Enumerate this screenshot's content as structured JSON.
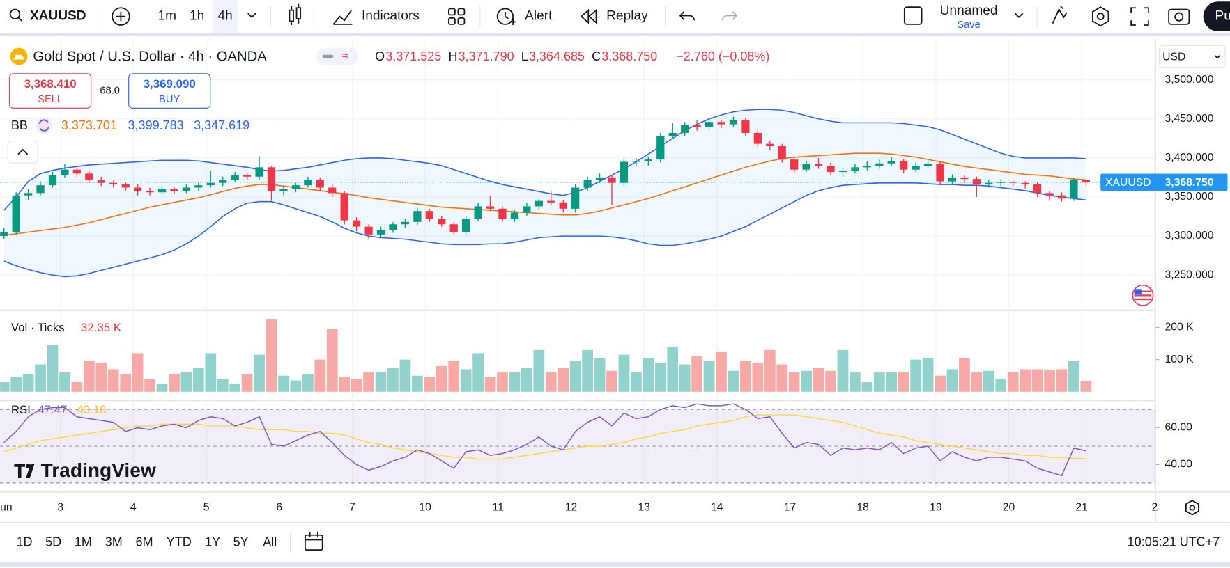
{
  "toolbar": {
    "symbol": "XAUUSD",
    "intervals": [
      "1m",
      "1h",
      "4h"
    ],
    "indicators": "Indicators",
    "alert": "Alert",
    "replay": "Replay",
    "layout_name": "Unnamed",
    "save": "Save",
    "publish": "Pu"
  },
  "legend": {
    "title": "Gold Spot / U.S. Dollar · 4h · OANDA",
    "ohlc": [
      {
        "key": "O",
        "value": "3,371.525"
      },
      {
        "key": "H",
        "value": "3,371.790"
      },
      {
        "key": "L",
        "value": "3,364.685"
      },
      {
        "key": "C",
        "value": "3,368.750"
      }
    ],
    "change": "−2.760 (−0.08%)",
    "sell": {
      "price": "3,368.410",
      "label": "SELL"
    },
    "spread": "68.0",
    "buy": {
      "price": "3,369.090",
      "label": "BUY"
    },
    "bb": {
      "label": "BB",
      "values": [
        "3,373.701",
        "3,399.783",
        "3,347.619"
      ]
    },
    "volume": {
      "label": "Vol · Ticks",
      "value": "32.35 K"
    },
    "rsi": {
      "label": "RSI",
      "values": [
        "47.47",
        "43.18"
      ]
    }
  },
  "currency": "USD",
  "price_tag": {
    "symbol": "XAUUSD",
    "price": "3,368.750"
  },
  "watermark": "TradingView",
  "time_axis": {
    "labels": [
      "un",
      "3",
      "4",
      "5",
      "6",
      "7",
      "10",
      "11",
      "12",
      "13",
      "14",
      "17",
      "18",
      "19",
      "20",
      "21",
      "2"
    ]
  },
  "ranges": [
    "1D",
    "5D",
    "1M",
    "3M",
    "6M",
    "YTD",
    "1Y",
    "5Y",
    "All"
  ],
  "clock": "10:05:21 UTC+7",
  "chart_data": [
    {
      "type": "candlestick",
      "up_color": "#089981",
      "down_color": "#f23645",
      "grid": true,
      "ylim": [
        3206,
        3552
      ],
      "yticks": [
        {
          "value": 3250,
          "label": "3,250.000"
        },
        {
          "value": 3300,
          "label": "3,300.000"
        },
        {
          "value": 3350,
          "label": "3,350.000"
        },
        {
          "value": 3400,
          "label": "3,400.000"
        },
        {
          "value": 3450,
          "label": "3,450.000"
        },
        {
          "value": 3500,
          "label": "3,500.000"
        }
      ],
      "candles": [
        [
          3300,
          3310,
          3296,
          3305
        ],
        [
          3305,
          3356,
          3302,
          3352
        ],
        [
          3352,
          3360,
          3346,
          3355
        ],
        [
          3355,
          3370,
          3352,
          3365
        ],
        [
          3365,
          3382,
          3362,
          3378
        ],
        [
          3378,
          3392,
          3374,
          3385
        ],
        [
          3385,
          3388,
          3376,
          3380
        ],
        [
          3380,
          3383,
          3368,
          3372
        ],
        [
          3372,
          3376,
          3364,
          3368
        ],
        [
          3368,
          3371,
          3362,
          3366
        ],
        [
          3366,
          3369,
          3358,
          3362
        ],
        [
          3362,
          3366,
          3352,
          3358
        ],
        [
          3358,
          3362,
          3352,
          3356
        ],
        [
          3356,
          3364,
          3353,
          3360
        ],
        [
          3360,
          3363,
          3354,
          3358
        ],
        [
          3358,
          3366,
          3355,
          3362
        ],
        [
          3362,
          3368,
          3358,
          3365
        ],
        [
          3365,
          3383,
          3362,
          3368
        ],
        [
          3368,
          3376,
          3364,
          3372
        ],
        [
          3372,
          3382,
          3369,
          3378
        ],
        [
          3378,
          3381,
          3372,
          3376
        ],
        [
          3376,
          3402,
          3372,
          3388
        ],
        [
          3388,
          3390,
          3345,
          3358
        ],
        [
          3358,
          3364,
          3352,
          3360
        ],
        [
          3360,
          3368,
          3356,
          3365
        ],
        [
          3365,
          3376,
          3362,
          3372
        ],
        [
          3372,
          3375,
          3358,
          3362
        ],
        [
          3362,
          3366,
          3350,
          3355
        ],
        [
          3355,
          3358,
          3315,
          3320
        ],
        [
          3320,
          3324,
          3306,
          3312
        ],
        [
          3312,
          3315,
          3296,
          3302
        ],
        [
          3302,
          3312,
          3298,
          3308
        ],
        [
          3308,
          3318,
          3304,
          3315
        ],
        [
          3315,
          3322,
          3310,
          3318
        ],
        [
          3318,
          3336,
          3314,
          3332
        ],
        [
          3332,
          3335,
          3318,
          3322
        ],
        [
          3322,
          3326,
          3312,
          3315
        ],
        [
          3315,
          3318,
          3301,
          3305
        ],
        [
          3305,
          3326,
          3302,
          3322
        ],
        [
          3322,
          3342,
          3319,
          3338
        ],
        [
          3338,
          3352,
          3332,
          3335
        ],
        [
          3335,
          3338,
          3318,
          3322
        ],
        [
          3322,
          3333,
          3318,
          3330
        ],
        [
          3330,
          3342,
          3326,
          3338
        ],
        [
          3338,
          3349,
          3334,
          3345
        ],
        [
          3345,
          3358,
          3340,
          3343
        ],
        [
          3343,
          3346,
          3330,
          3335
        ],
        [
          3335,
          3366,
          3330,
          3362
        ],
        [
          3362,
          3376,
          3358,
          3372
        ],
        [
          3372,
          3380,
          3368,
          3375
        ],
        [
          3375,
          3378,
          3340,
          3368
        ],
        [
          3368,
          3400,
          3364,
          3395
        ],
        [
          3395,
          3400,
          3390,
          3396
        ],
        [
          3396,
          3402,
          3390,
          3398
        ],
        [
          3398,
          3432,
          3394,
          3428
        ],
        [
          3428,
          3445,
          3424,
          3432
        ],
        [
          3432,
          3446,
          3428,
          3442
        ],
        [
          3442,
          3448,
          3435,
          3440
        ],
        [
          3440,
          3450,
          3436,
          3446
        ],
        [
          3446,
          3449,
          3438,
          3443
        ],
        [
          3443,
          3453,
          3440,
          3448
        ],
        [
          3448,
          3451,
          3428,
          3432
        ],
        [
          3432,
          3436,
          3414,
          3418
        ],
        [
          3418,
          3422,
          3410,
          3415
        ],
        [
          3415,
          3418,
          3394,
          3398
        ],
        [
          3398,
          3402,
          3380,
          3385
        ],
        [
          3385,
          3396,
          3382,
          3392
        ],
        [
          3392,
          3400,
          3386,
          3390
        ],
        [
          3390,
          3394,
          3378,
          3382
        ],
        [
          3382,
          3388,
          3376,
          3383
        ],
        [
          3383,
          3392,
          3380,
          3388
        ],
        [
          3388,
          3396,
          3384,
          3390
        ],
        [
          3390,
          3398,
          3386,
          3393
        ],
        [
          3393,
          3401,
          3389,
          3396
        ],
        [
          3396,
          3399,
          3381,
          3385
        ],
        [
          3385,
          3394,
          3382,
          3390
        ],
        [
          3390,
          3397,
          3386,
          3392
        ],
        [
          3392,
          3395,
          3365,
          3370
        ],
        [
          3370,
          3379,
          3366,
          3375
        ],
        [
          3375,
          3378,
          3368,
          3373
        ],
        [
          3373,
          3376,
          3350,
          3366
        ],
        [
          3366,
          3372,
          3362,
          3368
        ],
        [
          3368,
          3373,
          3364,
          3369
        ],
        [
          3369,
          3372,
          3364,
          3368
        ],
        [
          3368,
          3370,
          3361,
          3366
        ],
        [
          3366,
          3369,
          3350,
          3355
        ],
        [
          3355,
          3358,
          3345,
          3352
        ],
        [
          3352,
          3356,
          3344,
          3348
        ],
        [
          3348,
          3374,
          3345,
          3371.5
        ],
        [
          3371.525,
          3371.79,
          3364.685,
          3368.75
        ]
      ],
      "band_fill": "#2196f3",
      "series": [
        {
          "color": "#2962ff",
          "values": [
            3333,
            3350,
            3370,
            3380,
            3384,
            3387,
            3389,
            3391,
            3392,
            3393,
            3394,
            3395,
            3396,
            3397,
            3397,
            3397,
            3396,
            3394,
            3392,
            3390,
            3388,
            3385,
            3383,
            3384,
            3386,
            3388,
            3391,
            3394,
            3397,
            3399,
            3400,
            3400,
            3399,
            3397,
            3395,
            3393,
            3390,
            3385,
            3380,
            3375,
            3370,
            3366,
            3363,
            3360,
            3357,
            3354,
            3352,
            3356,
            3362,
            3370,
            3378,
            3386,
            3395,
            3405,
            3415,
            3425,
            3435,
            3443,
            3450,
            3455,
            3459,
            3461,
            3462,
            3462,
            3461,
            3458,
            3454,
            3450,
            3447,
            3445,
            3445,
            3445,
            3445,
            3445,
            3444,
            3442,
            3440,
            3436,
            3430,
            3424,
            3418,
            3412,
            3406,
            3402,
            3400,
            3400,
            3400,
            3400,
            3400,
            3399
          ]
        },
        {
          "color": "#ff6d00",
          "values": [
            3301,
            3303,
            3305,
            3307,
            3309,
            3311,
            3314,
            3317,
            3321,
            3325,
            3329,
            3333,
            3337,
            3340,
            3343,
            3346,
            3349,
            3353,
            3357,
            3361,
            3364,
            3366,
            3366,
            3364,
            3362,
            3360,
            3358,
            3356,
            3354,
            3352,
            3349,
            3347,
            3345,
            3343,
            3341,
            3339,
            3337,
            3336,
            3335,
            3334,
            3333,
            3332,
            3331,
            3330,
            3329,
            3328,
            3327,
            3327,
            3329,
            3332,
            3336,
            3340,
            3344,
            3348,
            3353,
            3358,
            3363,
            3368,
            3373,
            3378,
            3383,
            3388,
            3392,
            3396,
            3399,
            3401,
            3402,
            3403,
            3404,
            3405,
            3406,
            3406,
            3406,
            3405,
            3403,
            3401,
            3398,
            3395,
            3392,
            3389,
            3387,
            3385,
            3383,
            3381,
            3379,
            3378,
            3377,
            3375,
            3373,
            3372
          ]
        },
        {
          "color": "#2962ff",
          "values": [
            3268,
            3262,
            3257,
            3253,
            3250,
            3248,
            3249,
            3252,
            3256,
            3260,
            3264,
            3268,
            3272,
            3276,
            3282,
            3290,
            3300,
            3312,
            3325,
            3335,
            3342,
            3344,
            3344,
            3340,
            3335,
            3330,
            3325,
            3318,
            3310,
            3304,
            3300,
            3298,
            3297,
            3296,
            3294,
            3292,
            3290,
            3289,
            3289,
            3289,
            3290,
            3290,
            3292,
            3295,
            3298,
            3299,
            3300,
            3300,
            3300,
            3300,
            3299,
            3297,
            3294,
            3290,
            3288,
            3288,
            3290,
            3293,
            3296,
            3300,
            3306,
            3312,
            3320,
            3328,
            3336,
            3344,
            3352,
            3358,
            3362,
            3365,
            3366,
            3367,
            3368,
            3368,
            3368,
            3368,
            3367,
            3366,
            3366,
            3365,
            3365,
            3364,
            3362,
            3360,
            3358,
            3355,
            3352,
            3350,
            3348,
            3346
          ]
        }
      ]
    },
    {
      "type": "bar",
      "up_color": "#92d2cc",
      "down_color": "#f7a9a7",
      "ylim": [
        0,
        244
      ],
      "yticks": [
        {
          "value": 100,
          "label": "100 K"
        },
        {
          "value": 200,
          "label": "200 K"
        }
      ],
      "values": [
        30,
        45,
        55,
        85,
        145,
        60,
        30,
        95,
        90,
        70,
        55,
        120,
        40,
        25,
        55,
        60,
        75,
        120,
        40,
        25,
        55,
        115,
        225,
        50,
        35,
        55,
        100,
        195,
        45,
        40,
        60,
        60,
        75,
        100,
        50,
        45,
        80,
        95,
        70,
        120,
        45,
        60,
        60,
        75,
        130,
        60,
        75,
        95,
        130,
        105,
        65,
        115,
        60,
        105,
        90,
        140,
        85,
        110,
        95,
        125,
        65,
        95,
        90,
        130,
        85,
        60,
        65,
        75,
        65,
        130,
        60,
        30,
        60,
        60,
        60,
        100,
        105,
        50,
        70,
        105,
        60,
        65,
        40,
        60,
        70,
        70,
        68,
        70,
        95,
        32.35
      ]
    },
    {
      "type": "line",
      "ylim": [
        25.1,
        74.5
      ],
      "yticks": [
        {
          "value": 40,
          "label": "40.00"
        },
        {
          "value": 60,
          "label": "60.00"
        }
      ],
      "levels": [
        30,
        50,
        70
      ],
      "band_color": "#7e57c2",
      "series": [
        {
          "color": "#7e57c2",
          "values": [
            52,
            58,
            66,
            70,
            71,
            71,
            66,
            65,
            64,
            63,
            58,
            60,
            59,
            61,
            62,
            60,
            64,
            66,
            65,
            61,
            63,
            66,
            51,
            50,
            53,
            56,
            58,
            52,
            45,
            40,
            37,
            39,
            42,
            44,
            48,
            46,
            42,
            38,
            47,
            48,
            45,
            46,
            48,
            51,
            55,
            50,
            48,
            58,
            63,
            66,
            61,
            68,
            65,
            66,
            70,
            72,
            71,
            73,
            72,
            72,
            73,
            70,
            65,
            66,
            57,
            49,
            52,
            51,
            45,
            49,
            48,
            49,
            48,
            52,
            46,
            49,
            50,
            42,
            47,
            44,
            42,
            44,
            44,
            43,
            42,
            38,
            36,
            34,
            49,
            47.47
          ]
        },
        {
          "color": "#fdd835",
          "values": [
            47,
            49,
            51,
            53,
            54,
            55,
            56,
            57,
            58,
            59,
            60,
            61,
            61,
            62,
            62,
            62,
            62,
            61,
            61,
            61,
            60,
            59,
            59,
            59,
            58,
            58,
            57,
            57,
            56,
            54,
            52,
            51,
            49,
            48,
            47,
            46,
            45,
            44,
            44,
            43,
            43,
            43,
            44,
            45,
            46,
            47,
            48,
            49,
            50,
            50,
            51,
            52,
            54,
            55,
            57,
            58,
            59,
            61,
            62,
            63,
            64,
            66,
            67,
            67,
            67,
            67,
            66,
            65,
            64,
            63,
            61,
            59,
            57,
            56,
            55,
            53,
            52,
            51,
            50,
            49,
            48,
            47,
            46,
            46,
            45,
            45,
            44,
            44,
            43.5,
            43.18
          ]
        }
      ]
    }
  ]
}
